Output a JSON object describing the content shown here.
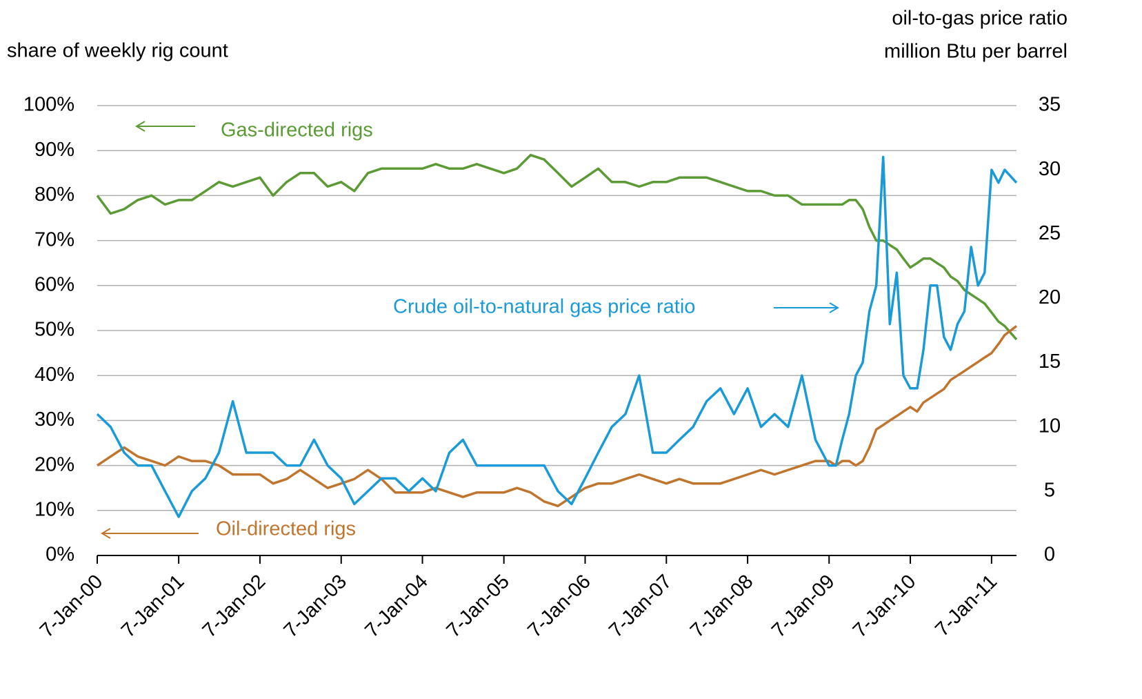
{
  "chart_data": {
    "type": "line",
    "y_label": "share of weekly rig count",
    "y2_label": [
      "oil-to-gas price ratio",
      "million Btu per barrel"
    ],
    "x": [
      "2000-01-07",
      "2000-03-07",
      "2000-05-07",
      "2000-07-07",
      "2000-09-07",
      "2000-11-07",
      "2001-01-07",
      "2001-03-07",
      "2001-05-07",
      "2001-07-07",
      "2001-09-07",
      "2001-11-07",
      "2002-01-07",
      "2002-03-07",
      "2002-05-07",
      "2002-07-07",
      "2002-09-07",
      "2002-11-07",
      "2003-01-07",
      "2003-03-07",
      "2003-05-07",
      "2003-07-07",
      "2003-09-07",
      "2003-11-07",
      "2004-01-07",
      "2004-03-07",
      "2004-05-07",
      "2004-07-07",
      "2004-09-07",
      "2004-11-07",
      "2005-01-07",
      "2005-03-07",
      "2005-05-07",
      "2005-07-07",
      "2005-09-07",
      "2005-11-07",
      "2006-01-07",
      "2006-03-07",
      "2006-05-07",
      "2006-07-07",
      "2006-09-07",
      "2006-11-07",
      "2007-01-07",
      "2007-03-07",
      "2007-05-07",
      "2007-07-07",
      "2007-09-07",
      "2007-11-07",
      "2008-01-07",
      "2008-03-07",
      "2008-05-07",
      "2008-07-07",
      "2008-09-07",
      "2008-11-07",
      "2009-01-07",
      "2009-02-07",
      "2009-03-07",
      "2009-04-07",
      "2009-05-07",
      "2009-06-07",
      "2009-07-07",
      "2009-08-07",
      "2009-09-07",
      "2009-10-07",
      "2009-11-07",
      "2009-12-07",
      "2010-01-07",
      "2010-02-07",
      "2010-03-07",
      "2010-04-07",
      "2010-05-07",
      "2010-06-07",
      "2010-07-07",
      "2010-08-07",
      "2010-09-07",
      "2010-10-07",
      "2010-11-07",
      "2010-12-07",
      "2011-01-07",
      "2011-02-07",
      "2011-03-07",
      "2011-04-29"
    ],
    "series": [
      {
        "name": "Gas-directed rigs",
        "color": "#5b9a34",
        "values": [
          80,
          76,
          77,
          79,
          80,
          78,
          79,
          79,
          81,
          83,
          82,
          83,
          84,
          80,
          83,
          85,
          85,
          82,
          83,
          81,
          85,
          86,
          86,
          86,
          86,
          87,
          86,
          86,
          87,
          86,
          85,
          86,
          89,
          88,
          85,
          82,
          84,
          86,
          83,
          83,
          82,
          83,
          83,
          84,
          84,
          84,
          83,
          82,
          81,
          81,
          80,
          80,
          78,
          78,
          78,
          78,
          78,
          79,
          79,
          77,
          73,
          70,
          70,
          69,
          68,
          66,
          64,
          65,
          66,
          66,
          65,
          64,
          62,
          61,
          59,
          58,
          57,
          56,
          54,
          52,
          51,
          48
        ]
      },
      {
        "name": "Oil-directed rigs",
        "color": "#c0752f",
        "values": [
          20,
          22,
          24,
          22,
          21,
          20,
          22,
          21,
          21,
          20,
          18,
          18,
          18,
          16,
          17,
          19,
          17,
          15,
          16,
          17,
          19,
          17,
          14,
          14,
          14,
          15,
          14,
          13,
          14,
          14,
          14,
          15,
          14,
          12,
          11,
          13,
          15,
          16,
          16,
          17,
          18,
          17,
          16,
          17,
          16,
          16,
          16,
          17,
          18,
          19,
          18,
          19,
          20,
          21,
          21,
          20,
          21,
          21,
          20,
          21,
          24,
          28,
          29,
          30,
          31,
          32,
          33,
          32,
          34,
          35,
          36,
          37,
          39,
          40,
          41,
          42,
          43,
          44,
          45,
          47,
          49,
          51
        ]
      },
      {
        "name": "Crude oil-to-natural gas price ratio",
        "color": "#1a9ad6",
        "axis": "y2",
        "values": [
          11,
          10,
          8,
          7,
          7,
          5,
          3,
          5,
          6,
          8,
          12,
          8,
          8,
          8,
          7,
          7,
          9,
          7,
          6,
          4,
          5,
          6,
          6,
          5,
          6,
          5,
          8,
          9,
          7,
          7,
          7,
          7,
          7,
          7,
          5,
          4,
          6,
          8,
          10,
          11,
          14,
          8,
          8,
          9,
          10,
          12,
          13,
          11,
          13,
          10,
          11,
          10,
          14,
          9,
          7,
          7,
          9,
          11,
          14,
          15,
          19,
          21,
          31,
          18,
          22,
          14,
          13,
          13,
          16,
          21,
          21,
          17,
          16,
          18,
          19,
          24,
          21,
          22,
          30,
          29,
          30,
          29
        ]
      }
    ],
    "xlim": [
      "2000-01-07",
      "2011-04-29"
    ],
    "xticks": [
      {
        "value": "2000-01-07",
        "label": "7-Jan-00"
      },
      {
        "value": "2001-01-07",
        "label": "7-Jan-01"
      },
      {
        "value": "2002-01-07",
        "label": "7-Jan-02"
      },
      {
        "value": "2003-01-07",
        "label": "7-Jan-03"
      },
      {
        "value": "2004-01-07",
        "label": "7-Jan-04"
      },
      {
        "value": "2005-01-07",
        "label": "7-Jan-05"
      },
      {
        "value": "2006-01-07",
        "label": "7-Jan-06"
      },
      {
        "value": "2007-01-07",
        "label": "7-Jan-07"
      },
      {
        "value": "2008-01-07",
        "label": "7-Jan-08"
      },
      {
        "value": "2009-01-07",
        "label": "7-Jan-09"
      },
      {
        "value": "2010-01-07",
        "label": "7-Jan-10"
      },
      {
        "value": "2011-01-07",
        "label": "7-Jan-11"
      }
    ],
    "ylim": [
      0,
      100
    ],
    "yticks": [
      {
        "value": 0,
        "label": "0%"
      },
      {
        "value": 10,
        "label": "10%"
      },
      {
        "value": 20,
        "label": "20%"
      },
      {
        "value": 30,
        "label": "30%"
      },
      {
        "value": 40,
        "label": "40%"
      },
      {
        "value": 50,
        "label": "50%"
      },
      {
        "value": 60,
        "label": "60%"
      },
      {
        "value": 70,
        "label": "70%"
      },
      {
        "value": 80,
        "label": "80%"
      },
      {
        "value": 90,
        "label": "90%"
      },
      {
        "value": 100,
        "label": "100%"
      }
    ],
    "y2lim": [
      0,
      35
    ],
    "y2ticks": [
      0,
      5,
      10,
      15,
      20,
      25,
      30,
      35
    ],
    "grid": true
  }
}
